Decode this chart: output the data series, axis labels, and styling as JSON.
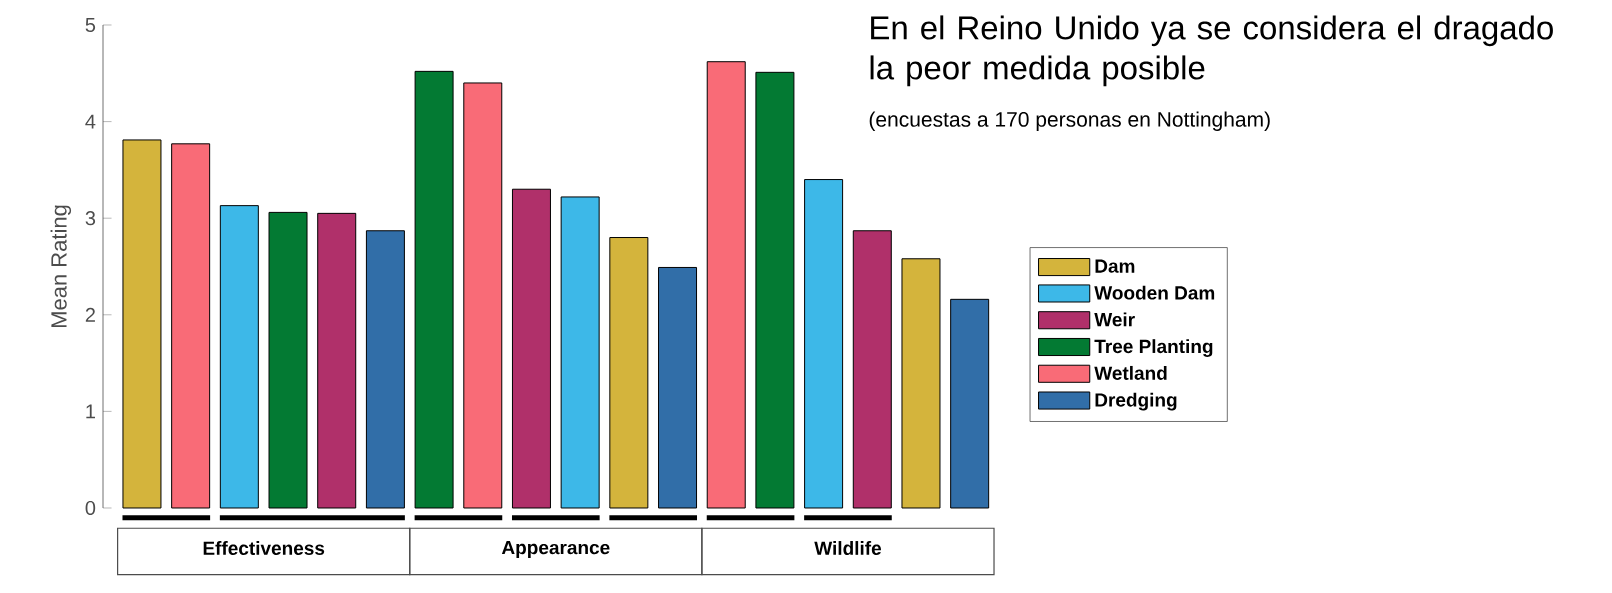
{
  "chart_data": {
    "type": "bar",
    "title": "En el Reino Unido ya se considera el dragado la peor medida posible",
    "subtitle": "(encuestas a 170 personas en Nottingham)",
    "ylabel": "Mean Rating",
    "categories": [
      "Effectiveness",
      "Appearance",
      "Wildlife"
    ],
    "series": [
      {
        "name": "Dam",
        "color": "#d4b43c",
        "values": [
          3.81,
          2.8,
          2.58
        ]
      },
      {
        "name": "Wooden Dam",
        "color": "#3db8e8",
        "values": [
          3.13,
          3.22,
          3.4
        ]
      },
      {
        "name": "Weir",
        "color": "#b0306a",
        "values": [
          3.05,
          3.3,
          2.87
        ]
      },
      {
        "name": "Tree Planting",
        "color": "#037a33",
        "values": [
          3.06,
          4.52,
          4.51
        ]
      },
      {
        "name": "Wetland",
        "color": "#f96b77",
        "values": [
          3.77,
          4.4,
          4.62
        ]
      },
      {
        "name": "Dredging",
        "color": "#316ea8",
        "values": [
          2.87,
          2.49,
          2.16
        ]
      }
    ],
    "ylim": [
      0,
      5
    ],
    "yticks": [
      0,
      1,
      2,
      3,
      4,
      5
    ],
    "legend": "right"
  }
}
